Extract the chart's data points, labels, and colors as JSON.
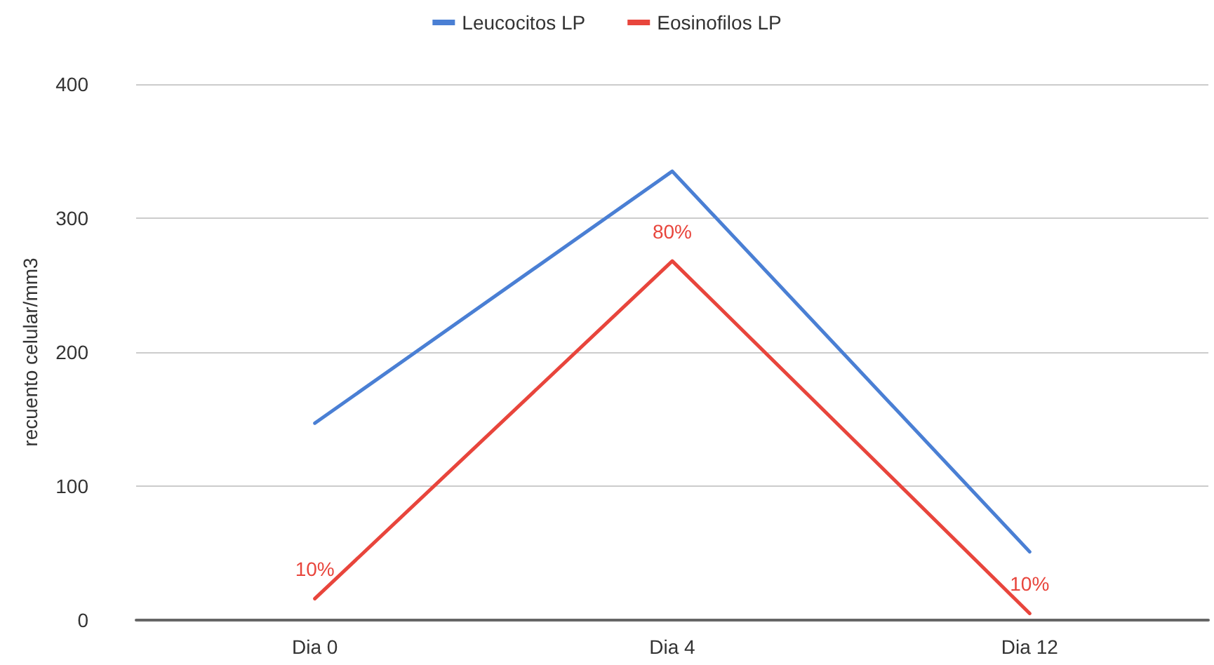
{
  "chart_data": {
    "type": "line",
    "ylabel": "recuento celular/mm3",
    "categories": [
      "Dia 0",
      "Dia 4",
      "Dia 12"
    ],
    "series": [
      {
        "name": "Leucocitos LP",
        "color": "#4a7fd4",
        "values": [
          147,
          335,
          51
        ]
      },
      {
        "name": "Eosinofilos LP",
        "color": "#e8453c",
        "values": [
          16,
          268,
          5
        ]
      }
    ],
    "annotations": [
      {
        "text": "10%",
        "x": "Dia 0",
        "y": 16
      },
      {
        "text": "80%",
        "x": "Dia 4",
        "y": 268
      },
      {
        "text": "10%",
        "x": "Dia 12",
        "y": 5
      }
    ],
    "ylim": [
      0,
      400
    ],
    "yticks": [
      0,
      100,
      200,
      300,
      400
    ],
    "grid": "y",
    "legend": "top",
    "marker": "none",
    "line_style": "solid"
  }
}
